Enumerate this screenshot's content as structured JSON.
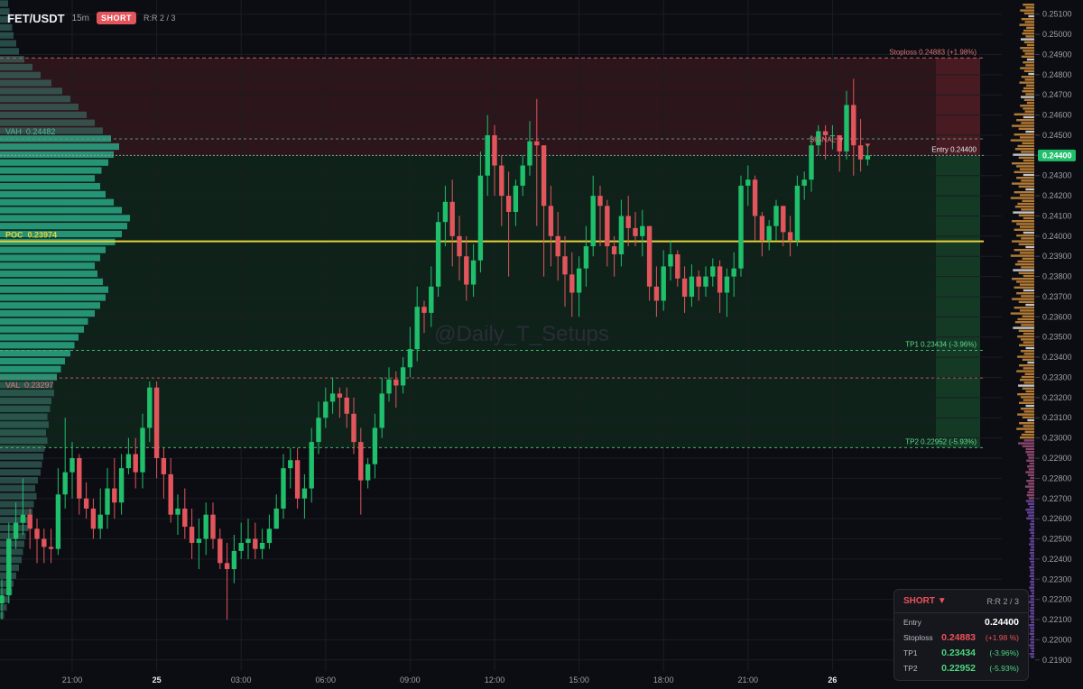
{
  "header": {
    "symbol": "FET/USDT",
    "timeframe": "15m",
    "side": "SHORT",
    "rr": "R:R 2 / 3"
  },
  "watermark": "@Daily_T_Setups",
  "colors": {
    "up": "#1fbf6b",
    "down": "#e2555c",
    "poc": "#e6d23a",
    "value_area": "#2bb58f",
    "stop_zone": "#3a1a1f",
    "target_zone": "#0f2a1d",
    "bg": "#0c0d12",
    "grid": "#1b1d24"
  },
  "levels": {
    "stoploss": {
      "label": "Stoploss 0.24883 (+1.98%)",
      "price": 0.24883
    },
    "entry": {
      "label": "Entry 0.24400",
      "price": 0.244
    },
    "tp1": {
      "label": "TP1 0.23434 (-3.96%)",
      "price": 0.23434
    },
    "tp2": {
      "label": "TP2 0.22952 (-5.93%)",
      "price": 0.22952
    },
    "vah": {
      "label": "VAH  0.24482",
      "price": 0.24482
    },
    "poc": {
      "label": "POC  0.23974",
      "price": 0.23974
    },
    "val": {
      "label": "VAL  0.23297",
      "price": 0.23297
    },
    "signal": "SIGNAL ▼",
    "current_price": "0.24400"
  },
  "panel": {
    "title": "SHORT ▼",
    "rr": "R:R 2 / 3",
    "rows": [
      {
        "label": "Entry",
        "value": "0.24400",
        "pct": ""
      },
      {
        "label": "Stoploss",
        "value": "0.24883",
        "pct": "(+1.98 %)"
      },
      {
        "label": "TP1",
        "value": "0.23434",
        "pct": "(-3.96%)"
      },
      {
        "label": "TP2",
        "value": "0.22952",
        "pct": "(-5.93%)"
      }
    ]
  },
  "chart_data": {
    "type": "candlestick",
    "ylim": [
      0.2182,
      0.2516
    ],
    "yticks": [
      "0.25100",
      "0.25000",
      "0.24900",
      "0.24800",
      "0.24700",
      "0.24600",
      "0.24500",
      "0.24400",
      "0.24300",
      "0.24200",
      "0.24100",
      "0.24000",
      "0.23900",
      "0.23800",
      "0.23700",
      "0.23600",
      "0.23500",
      "0.23400",
      "0.23300",
      "0.23200",
      "0.23100",
      "0.23000",
      "0.22900",
      "0.22800",
      "0.22700",
      "0.22600",
      "0.22500",
      "0.22400",
      "0.22300",
      "0.22200",
      "0.22100",
      "0.22000",
      "0.21900"
    ],
    "xticks": [
      {
        "label": "21:00",
        "bar": 10,
        "bold": false
      },
      {
        "label": "25",
        "bar": 22,
        "bold": true
      },
      {
        "label": "03:00",
        "bar": 34,
        "bold": false
      },
      {
        "label": "06:00",
        "bar": 46,
        "bold": false
      },
      {
        "label": "09:00",
        "bar": 58,
        "bold": false
      },
      {
        "label": "12:00",
        "bar": 70,
        "bold": false
      },
      {
        "label": "15:00",
        "bar": 82,
        "bold": false
      },
      {
        "label": "18:00",
        "bar": 94,
        "bold": false
      },
      {
        "label": "21:00",
        "bar": 106,
        "bold": false
      },
      {
        "label": "26",
        "bar": 118,
        "bold": true
      }
    ],
    "closes": [
      0.2222,
      0.225,
      0.2258,
      0.2262,
      0.2255,
      0.225,
      0.2246,
      0.2245,
      0.2272,
      0.2283,
      0.229,
      0.227,
      0.2265,
      0.2255,
      0.2262,
      0.2275,
      0.2268,
      0.2285,
      0.2292,
      0.2283,
      0.2305,
      0.2325,
      0.229,
      0.2282,
      0.2262,
      0.2265,
      0.2256,
      0.2248,
      0.225,
      0.2262,
      0.225,
      0.2238,
      0.2235,
      0.2244,
      0.2248,
      0.225,
      0.2245,
      0.2248,
      0.2255,
      0.2265,
      0.2285,
      0.2289,
      0.227,
      0.2275,
      0.2298,
      0.231,
      0.2318,
      0.2322,
      0.232,
      0.2312,
      0.2298,
      0.2279,
      0.2287,
      0.2305,
      0.2322,
      0.2329,
      0.2326,
      0.2335,
      0.2344,
      0.2365,
      0.2362,
      0.2375,
      0.2407,
      0.2417,
      0.24,
      0.239,
      0.2376,
      0.2388,
      0.243,
      0.245,
      0.2435,
      0.242,
      0.2412,
      0.2425,
      0.2435,
      0.2447,
      0.2445,
      0.2415,
      0.24,
      0.239,
      0.2381,
      0.2372,
      0.2384,
      0.2395,
      0.242,
      0.2415,
      0.2395,
      0.2391,
      0.241,
      0.2404,
      0.24,
      0.2405,
      0.2375,
      0.2368,
      0.2385,
      0.2391,
      0.2379,
      0.237,
      0.238,
      0.2375,
      0.238,
      0.2385,
      0.2372,
      0.238,
      0.2384,
      0.2425,
      0.2428,
      0.241,
      0.2398,
      0.2405,
      0.2415,
      0.2402,
      0.2398,
      0.2425,
      0.2428,
      0.2445,
      0.2452,
      0.245,
      0.245,
      0.2442,
      0.2465,
      0.2445,
      0.2438,
      0.244
    ],
    "highs": [
      0.223,
      0.2258,
      0.2268,
      0.228,
      0.2265,
      0.226,
      0.2255,
      0.2255,
      0.2285,
      0.231,
      0.2298,
      0.2292,
      0.2278,
      0.227,
      0.2275,
      0.2285,
      0.229,
      0.2292,
      0.23,
      0.23,
      0.2312,
      0.2328,
      0.2328,
      0.2295,
      0.229,
      0.2272,
      0.2275,
      0.2265,
      0.226,
      0.2268,
      0.2268,
      0.2255,
      0.2248,
      0.2252,
      0.2258,
      0.226,
      0.2258,
      0.2255,
      0.2262,
      0.2272,
      0.2292,
      0.2295,
      0.2295,
      0.2282,
      0.2305,
      0.2318,
      0.2325,
      0.233,
      0.2325,
      0.2325,
      0.232,
      0.2305,
      0.229,
      0.2312,
      0.233,
      0.2335,
      0.2333,
      0.234,
      0.2355,
      0.2375,
      0.2368,
      0.2385,
      0.2412,
      0.2425,
      0.2428,
      0.241,
      0.24,
      0.2396,
      0.2442,
      0.246,
      0.2455,
      0.244,
      0.2432,
      0.2428,
      0.244,
      0.2457,
      0.2468,
      0.2445,
      0.2425,
      0.2412,
      0.24,
      0.2392,
      0.239,
      0.2405,
      0.243,
      0.2425,
      0.2418,
      0.24,
      0.2418,
      0.242,
      0.2412,
      0.2413,
      0.2405,
      0.2385,
      0.2393,
      0.2398,
      0.2393,
      0.2385,
      0.2386,
      0.2383,
      0.2385,
      0.2389,
      0.2388,
      0.2384,
      0.2392,
      0.243,
      0.2435,
      0.243,
      0.2412,
      0.2408,
      0.2418,
      0.2415,
      0.241,
      0.243,
      0.2432,
      0.245,
      0.2455,
      0.2455,
      0.2455,
      0.245,
      0.2472,
      0.2478,
      0.2458,
      0.2445
    ],
    "lows": [
      0.221,
      0.2218,
      0.2245,
      0.2252,
      0.2245,
      0.2238,
      0.2238,
      0.2238,
      0.2242,
      0.2265,
      0.227,
      0.2262,
      0.226,
      0.225,
      0.225,
      0.2255,
      0.226,
      0.2262,
      0.2282,
      0.2275,
      0.2275,
      0.2298,
      0.228,
      0.227,
      0.2258,
      0.2252,
      0.225,
      0.224,
      0.2235,
      0.2242,
      0.2245,
      0.2235,
      0.221,
      0.2228,
      0.224,
      0.224,
      0.224,
      0.224,
      0.2245,
      0.2255,
      0.226,
      0.2275,
      0.2265,
      0.226,
      0.2268,
      0.2292,
      0.2305,
      0.2312,
      0.231,
      0.2305,
      0.2292,
      0.2262,
      0.2275,
      0.228,
      0.23,
      0.2318,
      0.2315,
      0.2322,
      0.233,
      0.2338,
      0.2352,
      0.2355,
      0.237,
      0.2395,
      0.2385,
      0.2378,
      0.2368,
      0.237,
      0.2382,
      0.242,
      0.242,
      0.2405,
      0.238,
      0.2405,
      0.242,
      0.243,
      0.2405,
      0.238,
      0.2385,
      0.2378,
      0.2365,
      0.236,
      0.236,
      0.2375,
      0.239,
      0.2395,
      0.2385,
      0.238,
      0.2385,
      0.2395,
      0.2395,
      0.239,
      0.2368,
      0.236,
      0.2363,
      0.2378,
      0.2375,
      0.2362,
      0.2365,
      0.2368,
      0.237,
      0.2375,
      0.2362,
      0.236,
      0.237,
      0.238,
      0.2415,
      0.2398,
      0.239,
      0.2393,
      0.2398,
      0.2395,
      0.239,
      0.2395,
      0.2418,
      0.2422,
      0.244,
      0.2438,
      0.2443,
      0.2432,
      0.2438,
      0.243,
      0.2432,
      0.2435
    ],
    "volume_profile": {
      "min": 0.221,
      "max": 0.2525,
      "values": [
        0.03,
        0.05,
        0.07,
        0.09,
        0.1,
        0.12,
        0.14,
        0.16,
        0.17,
        0.18,
        0.19,
        0.21,
        0.22,
        0.24,
        0.25,
        0.27,
        0.26,
        0.28,
        0.3,
        0.31,
        0.32,
        0.33,
        0.35,
        0.34,
        0.36,
        0.35,
        0.37,
        0.38,
        0.4,
        0.39,
        0.42,
        0.45,
        0.48,
        0.52,
        0.55,
        0.58,
        0.62,
        0.65,
        0.7,
        0.74,
        0.78,
        0.8,
        0.76,
        0.72,
        0.7,
        0.74,
        0.78,
        0.85,
        0.9,
        0.94,
        0.96,
        0.9,
        0.84,
        0.78,
        0.74,
        0.7,
        0.75,
        0.8,
        0.84,
        0.88,
        0.82,
        0.76,
        0.7,
        0.64,
        0.58,
        0.52,
        0.46,
        0.38,
        0.3,
        0.24,
        0.18,
        0.14,
        0.12,
        0.1,
        0.09,
        0.08,
        0.07,
        0.06,
        0.05,
        0.04
      ]
    }
  }
}
